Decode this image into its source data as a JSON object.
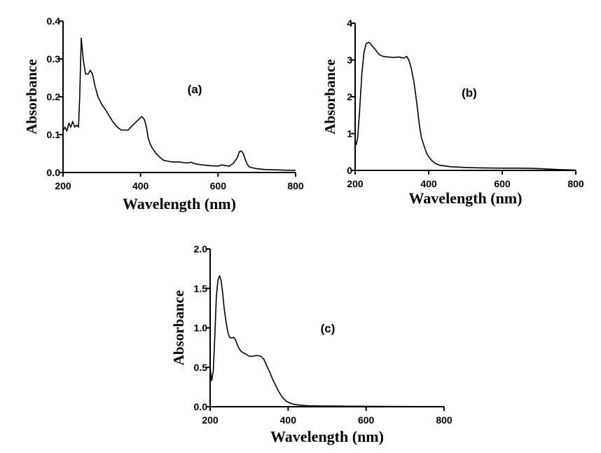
{
  "chart_data": [
    {
      "type": "line",
      "panel_label": "(a)",
      "xlabel": "Wavelength (nm)",
      "ylabel": "Absorbance",
      "xlim": [
        200,
        800
      ],
      "ylim": [
        0,
        0.4
      ],
      "xticks": [
        200,
        400,
        600,
        800
      ],
      "yticks": [
        0.0,
        0.1,
        0.2,
        0.3,
        0.4
      ],
      "xtick_labels": [
        "200",
        "400",
        "600",
        "800"
      ],
      "ytick_labels": [
        "0.0",
        "0.1",
        "0.2",
        "0.3",
        "0.4"
      ],
      "grid": false,
      "series": [
        {
          "x": [
            200,
            205,
            210,
            215,
            220,
            225,
            230,
            235,
            240,
            243,
            247,
            252,
            258,
            265,
            270,
            276,
            282,
            290,
            300,
            310,
            320,
            330,
            340,
            350,
            360,
            368,
            375,
            385,
            395,
            403,
            410,
            415,
            420,
            425,
            430,
            440,
            450,
            460,
            480,
            500,
            520,
            530,
            545,
            560,
            580,
            600,
            610,
            620,
            630,
            640,
            650,
            655,
            660,
            665,
            670,
            675,
            680,
            690,
            700,
            720,
            750,
            780,
            800
          ],
          "y": [
            0.11,
            0.12,
            0.11,
            0.13,
            0.12,
            0.135,
            0.12,
            0.125,
            0.12,
            0.2,
            0.355,
            0.3,
            0.26,
            0.26,
            0.27,
            0.26,
            0.23,
            0.2,
            0.18,
            0.165,
            0.148,
            0.132,
            0.12,
            0.112,
            0.112,
            0.112,
            0.12,
            0.13,
            0.14,
            0.148,
            0.14,
            0.12,
            0.09,
            0.075,
            0.065,
            0.05,
            0.04,
            0.032,
            0.028,
            0.028,
            0.025,
            0.027,
            0.022,
            0.02,
            0.018,
            0.017,
            0.02,
            0.018,
            0.017,
            0.025,
            0.04,
            0.055,
            0.057,
            0.05,
            0.035,
            0.022,
            0.015,
            0.012,
            0.01,
            0.008,
            0.007,
            0.006,
            0.006
          ]
        }
      ]
    },
    {
      "type": "line",
      "panel_label": "(b)",
      "xlabel": "Wavelength (nm)",
      "ylabel": "Absorbance",
      "xlim": [
        200,
        800
      ],
      "ylim": [
        0,
        4
      ],
      "xticks": [
        200,
        400,
        600,
        800
      ],
      "yticks": [
        0,
        1,
        2,
        3,
        4
      ],
      "xtick_labels": [
        "200",
        "400",
        "600",
        "800"
      ],
      "ytick_labels": [
        "0",
        "1",
        "2",
        "3",
        "4"
      ],
      "grid": false,
      "series": [
        {
          "x": [
            200,
            203,
            207,
            212,
            218,
            224,
            230,
            238,
            245,
            255,
            265,
            275,
            290,
            305,
            320,
            333,
            340,
            346,
            352,
            360,
            368,
            375,
            380,
            388,
            395,
            403,
            410,
            420,
            430,
            445,
            460,
            480,
            500,
            530,
            560,
            600,
            640,
            680,
            720,
            760,
            800
          ],
          "y": [
            0.8,
            0.7,
            0.9,
            1.6,
            2.6,
            3.2,
            3.45,
            3.48,
            3.4,
            3.28,
            3.15,
            3.1,
            3.08,
            3.07,
            3.08,
            3.05,
            3.1,
            3.0,
            2.8,
            2.4,
            1.8,
            1.2,
            0.9,
            0.65,
            0.45,
            0.33,
            0.25,
            0.18,
            0.14,
            0.12,
            0.1,
            0.09,
            0.08,
            0.07,
            0.065,
            0.06,
            0.06,
            0.055,
            0.04,
            0.02,
            0.01
          ]
        }
      ]
    },
    {
      "type": "line",
      "panel_label": "(c)",
      "xlabel": "Wavelength (nm)",
      "ylabel": "Absorbance",
      "xlim": [
        200,
        800
      ],
      "ylim": [
        0,
        2.0
      ],
      "xticks": [
        200,
        400,
        600,
        800
      ],
      "yticks": [
        0.0,
        0.5,
        1.0,
        1.5,
        2.0
      ],
      "xtick_labels": [
        "200",
        "400",
        "600",
        "800"
      ],
      "ytick_labels": [
        "0.0",
        "0.5",
        "1.0",
        "1.5",
        "2.0"
      ],
      "grid": false,
      "series": [
        {
          "x": [
            200,
            204,
            208,
            212,
            216,
            220,
            224,
            228,
            232,
            236,
            240,
            245,
            250,
            255,
            260,
            265,
            270,
            275,
            280,
            290,
            300,
            310,
            320,
            330,
            338,
            345,
            352,
            360,
            368,
            375,
            385,
            395,
            405,
            415,
            430,
            450,
            480,
            520,
            560,
            600,
            650,
            700,
            760,
            800
          ],
          "y": [
            0.5,
            0.33,
            0.45,
            0.9,
            1.4,
            1.6,
            1.66,
            1.6,
            1.45,
            1.25,
            1.1,
            0.95,
            0.88,
            0.87,
            0.88,
            0.85,
            0.78,
            0.73,
            0.7,
            0.67,
            0.64,
            0.64,
            0.65,
            0.64,
            0.6,
            0.52,
            0.45,
            0.35,
            0.27,
            0.2,
            0.12,
            0.07,
            0.045,
            0.03,
            0.02,
            0.013,
            0.01,
            0.008,
            0.006,
            0.005,
            0.004,
            0.003,
            0.002,
            0.002
          ]
        }
      ]
    }
  ]
}
